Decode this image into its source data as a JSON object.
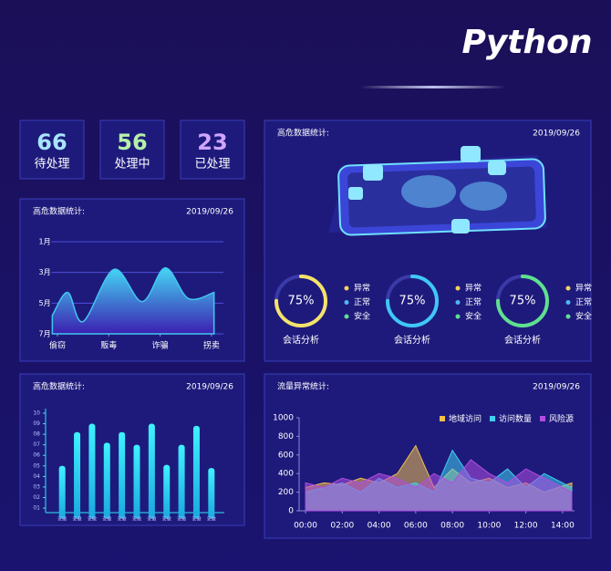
{
  "header": {
    "title": "Python"
  },
  "stats": [
    {
      "value": 66,
      "label": "待处理",
      "color": "#a8e4ff"
    },
    {
      "value": 56,
      "label": "处理中",
      "color": "#b4f0a8"
    },
    {
      "value": 23,
      "label": "已处理",
      "color": "#cfa6ff"
    }
  ],
  "chart_data": [
    {
      "type": "area",
      "title": "高危数据统计:",
      "date": "2019/09/26",
      "color": "#40c8f0",
      "x": [
        -0.1,
        0.2,
        0.5,
        1.1,
        1.65,
        2.1,
        2.55,
        3.05
      ],
      "values": [
        5.8,
        4.3,
        6.2,
        2.8,
        4.9,
        2.7,
        4.7,
        4.3
      ],
      "xlim": [
        -0.4,
        3.5
      ],
      "xticks": [
        {
          "value": 0,
          "label": "偷窃"
        },
        {
          "value": 1,
          "label": "贩毒"
        },
        {
          "value": 2,
          "label": "诈骗"
        },
        {
          "value": 3,
          "label": "拐卖"
        }
      ],
      "ylim": [
        7,
        1
      ],
      "yticks": [
        {
          "value": 1,
          "label": "1月"
        },
        {
          "value": 3,
          "label": "3月"
        },
        {
          "value": 5,
          "label": "5月"
        },
        {
          "value": 7,
          "label": "7月"
        }
      ],
      "grid": true
    },
    {
      "type": "gauge",
      "title": "高危数据统计:",
      "date": "2019/09/26",
      "values": [
        75,
        75,
        75
      ],
      "value_labels": [
        "75%",
        "75%",
        "75%"
      ],
      "categories": [
        "会话分析",
        "会话分析",
        "会话分析"
      ],
      "colors": [
        "#f4e36a",
        "#3fc8f5",
        "#5fe08f"
      ],
      "legend": [
        "异常",
        "正常",
        "安全"
      ],
      "legend_colors": [
        "#f4d35e",
        "#4fb8f0",
        "#5fe08f"
      ]
    },
    {
      "type": "bar",
      "title": "高危数据统计:",
      "date": "2019/09/26",
      "color": "#2fe6f5",
      "categories": [
        "安徽",
        "安徽",
        "安徽",
        "安徽",
        "安徽",
        "安徽",
        "安徽",
        "安徽",
        "安徽",
        "安徽",
        "安徽"
      ],
      "values": [
        5,
        8.2,
        9,
        7.2,
        8.2,
        7,
        9,
        5.1,
        7,
        8.8,
        4.8
      ],
      "ylim": [
        0,
        10
      ],
      "yticks": [
        {
          "value": 1,
          "label": "01"
        },
        {
          "value": 2,
          "label": "02"
        },
        {
          "value": 3,
          "label": "03"
        },
        {
          "value": 4,
          "label": "04"
        },
        {
          "value": 5,
          "label": "05"
        },
        {
          "value": 6,
          "label": "06"
        },
        {
          "value": 7,
          "label": "07"
        },
        {
          "value": 8,
          "label": "08"
        },
        {
          "value": 9,
          "label": "09"
        },
        10
      ]
    },
    {
      "type": "area",
      "title": "流量异常统计:",
      "date": "2019/09/26",
      "x": [
        0,
        1,
        2,
        3,
        4,
        5,
        6,
        7,
        8,
        9,
        10,
        11,
        12,
        13,
        14.5
      ],
      "series": [
        {
          "name": "地域访问",
          "color": "#f0c04a",
          "values": [
            250,
            300,
            280,
            350,
            300,
            400,
            700,
            250,
            450,
            300,
            350,
            250,
            300,
            200,
            300
          ]
        },
        {
          "name": "访问数量",
          "color": "#3fd0f0",
          "values": [
            200,
            250,
            300,
            200,
            350,
            250,
            300,
            200,
            650,
            350,
            300,
            450,
            250,
            400,
            250
          ]
        },
        {
          "name": "风险源",
          "color": "#b04ee0",
          "values": [
            300,
            250,
            350,
            300,
            400,
            350,
            250,
            400,
            300,
            550,
            400,
            300,
            450,
            350,
            200
          ]
        }
      ],
      "xlim": [
        -0.35,
        14.65
      ],
      "xticks": [
        {
          "value": 0,
          "label": "00:00"
        },
        {
          "value": 2,
          "label": "02:00"
        },
        {
          "value": 4,
          "label": "04:00"
        },
        {
          "value": 6,
          "label": "06:00"
        },
        {
          "value": 8,
          "label": "08:00"
        },
        {
          "value": 10,
          "label": "10:00"
        },
        {
          "value": 12,
          "label": "12:00"
        },
        {
          "value": 14,
          "label": "14:00"
        }
      ],
      "ylim": [
        0,
        1000
      ],
      "yticks": [
        0,
        200,
        400,
        600,
        800,
        1000
      ]
    }
  ]
}
